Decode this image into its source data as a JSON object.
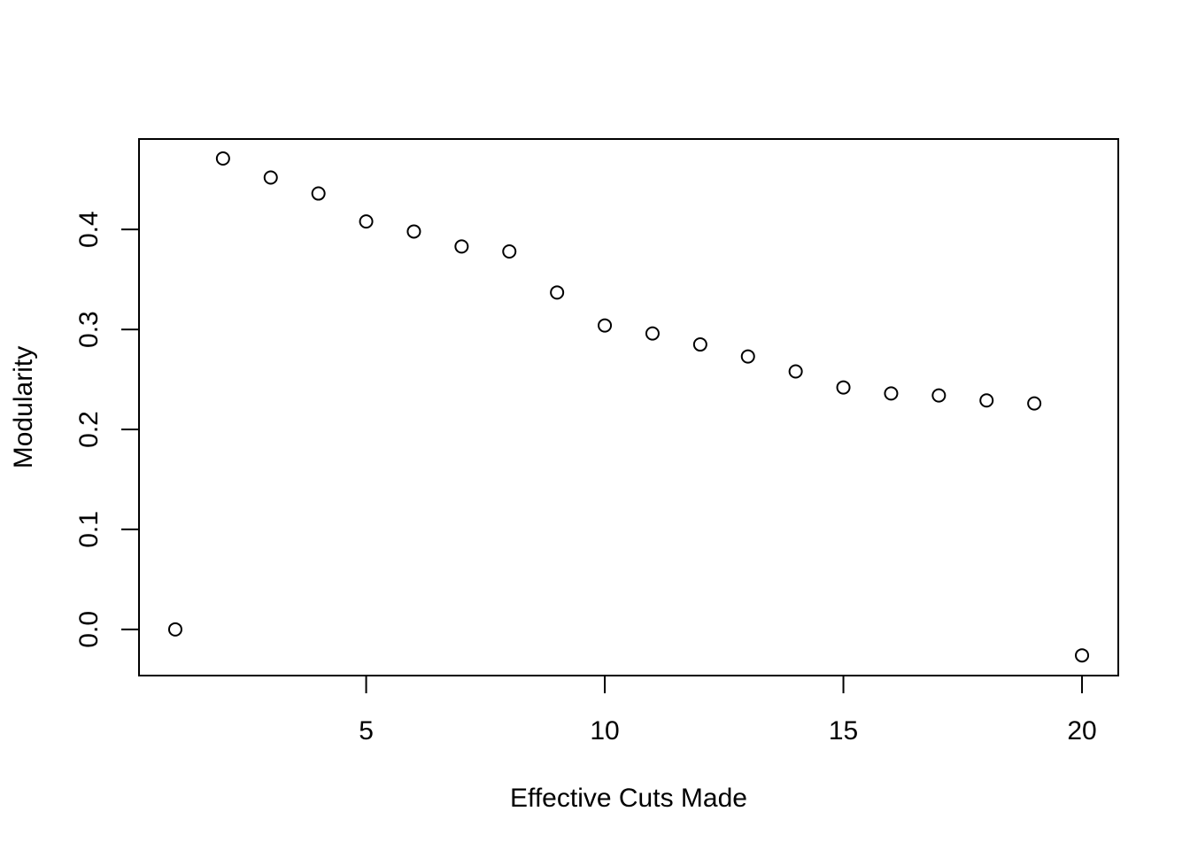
{
  "chart_data": {
    "type": "scatter",
    "title": "",
    "xlabel": "Effective Cuts Made",
    "ylabel": "Modularity",
    "xlim": [
      0.24,
      20.76
    ],
    "ylim": [
      -0.0462,
      0.4905
    ],
    "grid": false,
    "legend": "none",
    "marker": "open-circle",
    "color": "#000000",
    "x_ticks": [
      5,
      10,
      15,
      20
    ],
    "x_tick_labels": [
      "5",
      "10",
      "15",
      "20"
    ],
    "y_ticks": [
      0.0,
      0.1,
      0.2,
      0.3,
      0.4
    ],
    "y_tick_labels": [
      "0.0",
      "0.1",
      "0.2",
      "0.3",
      "0.4"
    ],
    "x": [
      1,
      2,
      3,
      4,
      5,
      6,
      7,
      8,
      9,
      10,
      11,
      12,
      13,
      14,
      15,
      16,
      17,
      18,
      19,
      20
    ],
    "y": [
      0.0,
      0.471,
      0.452,
      0.436,
      0.408,
      0.398,
      0.383,
      0.378,
      0.337,
      0.304,
      0.296,
      0.285,
      0.273,
      0.258,
      0.242,
      0.236,
      0.234,
      0.229,
      0.226,
      -0.026
    ]
  }
}
